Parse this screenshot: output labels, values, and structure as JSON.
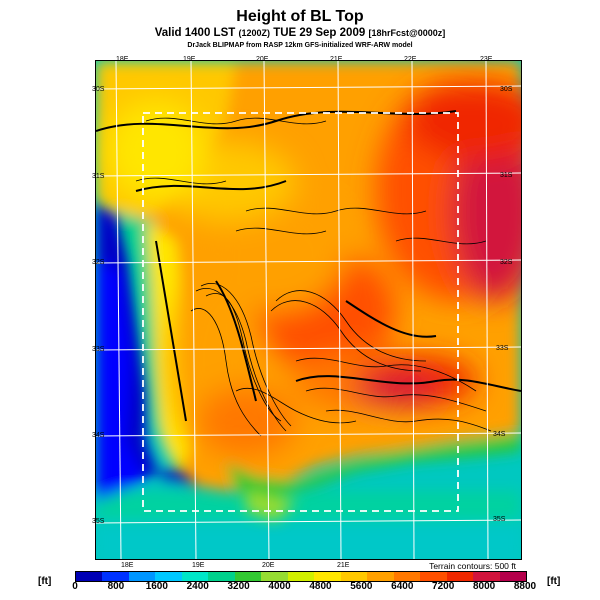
{
  "header": {
    "title": "Height of BL Top",
    "subtitle_main": "Valid 1400 LST",
    "subtitle_small": "(1200Z)",
    "subtitle_date": "TUE 29 Sep 2009",
    "subtitle_fcst": "[18hrFcst@0000z]",
    "credit": "DrJack BLIPMAP from RASP 12km GFS-initialized WRF-ARW model"
  },
  "map": {
    "top_lon_ticks": [
      "18E",
      "19E",
      "20E",
      "21E",
      "22E",
      "23E"
    ],
    "bottom_lon_ticks": [
      "18E",
      "19E",
      "20E",
      "21E"
    ],
    "left_lat_ticks": [
      "30S",
      "31S",
      "32S",
      "33S",
      "34S",
      "35S"
    ],
    "right_lat_ticks": [
      "30S",
      "31S",
      "32S",
      "33S",
      "34S",
      "35S"
    ],
    "contour_note": "Terrain contours: 500 ft"
  },
  "legend": {
    "unit_left": "[ft]",
    "unit_right": "[ft]",
    "labels": [
      "0",
      "800",
      "1600",
      "2400",
      "3200",
      "4000",
      "4800",
      "5600",
      "6400",
      "7200",
      "8000",
      "8800"
    ],
    "colors": [
      "#0000b4",
      "#0032ff",
      "#0096ff",
      "#00c8ff",
      "#00e6c8",
      "#00d28c",
      "#32c832",
      "#96dc32",
      "#d2f000",
      "#ffe600",
      "#ffc800",
      "#ffa000",
      "#ff7800",
      "#ff5000",
      "#f02800",
      "#d2143c",
      "#b4004b"
    ]
  }
}
